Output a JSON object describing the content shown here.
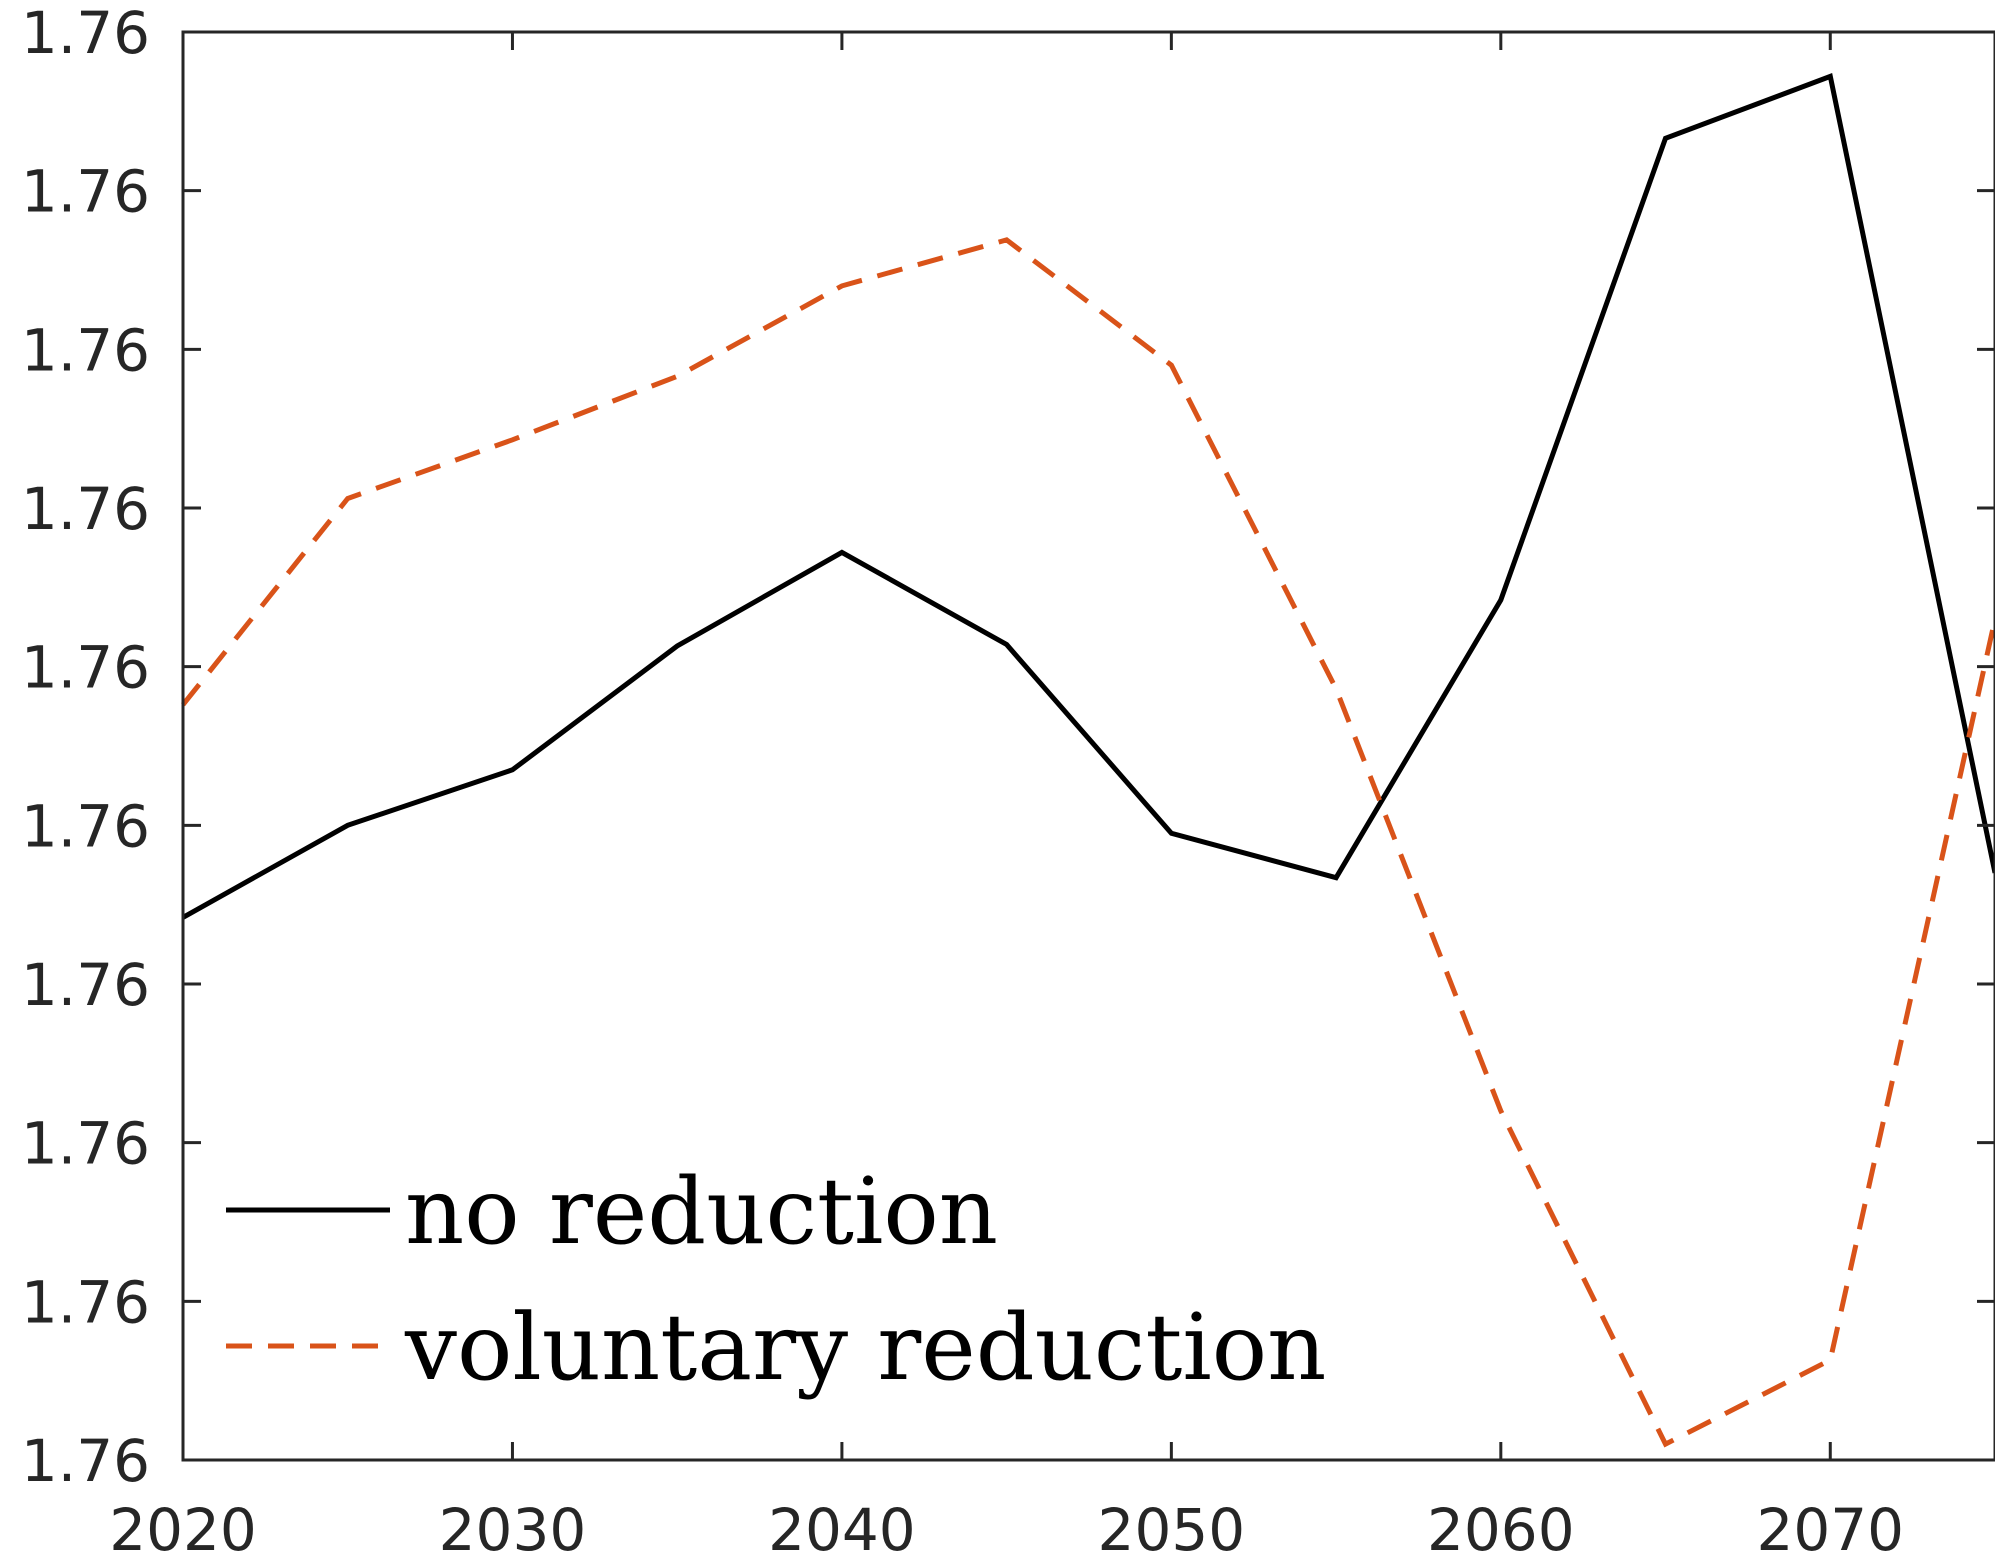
{
  "chart_data": {
    "type": "line",
    "title": "",
    "xlabel": "",
    "ylabel": "",
    "x": [
      2020,
      2025,
      2030,
      2035,
      2040,
      2045,
      2050,
      2055,
      2060,
      2065,
      2070,
      2075
    ],
    "xlim": [
      2020,
      2075
    ],
    "ylim": [
      0,
      9
    ],
    "x_ticks": [
      2020,
      2030,
      2040,
      2050,
      2060,
      2070
    ],
    "x_tick_labels": [
      "2020",
      "2030",
      "2040",
      "2050",
      "2060",
      "2070"
    ],
    "y_ticks": [
      0,
      1,
      2,
      3,
      4,
      5,
      6,
      7,
      8,
      9
    ],
    "y_tick_labels": [
      "1.76",
      "1.76",
      "1.76",
      "1.76",
      "1.76",
      "1.76",
      "1.76",
      "1.76",
      "1.76",
      "1.76"
    ],
    "y_note": "y tick labels all display 1.76; values are given in tick-index units (0 = bottom tick, 9 = top tick)",
    "grid": false,
    "legend_position": "bottom-left",
    "series": [
      {
        "name": "no reduction",
        "style": "solid",
        "color": "#000000",
        "values": [
          3.42,
          4.0,
          4.35,
          5.13,
          5.72,
          5.14,
          3.95,
          3.67,
          5.42,
          8.33,
          8.72,
          3.7
        ]
      },
      {
        "name": "voluntary reduction",
        "style": "dashed",
        "color": "#D95319",
        "values": [
          4.76,
          6.06,
          6.43,
          6.83,
          7.4,
          7.69,
          6.9,
          4.86,
          2.2,
          0.1,
          0.63,
          5.3
        ]
      }
    ]
  }
}
